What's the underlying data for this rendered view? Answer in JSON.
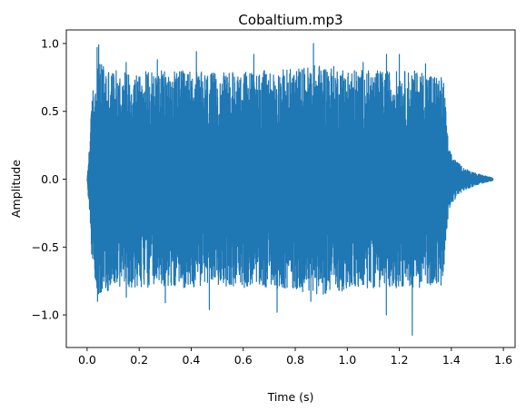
{
  "chart_data": {
    "type": "line",
    "title": "Cobaltium.mp3",
    "xlabel": "Time (s)",
    "ylabel": "Amplitude",
    "xlim": [
      -0.08,
      1.645
    ],
    "ylim": [
      -1.24,
      1.1
    ],
    "x_ticks": [
      0.0,
      0.2,
      0.4,
      0.6,
      0.8,
      1.0,
      1.2,
      1.4,
      1.6
    ],
    "x_tick_labels": [
      "0.0",
      "0.2",
      "0.4",
      "0.6",
      "0.8",
      "1.0",
      "1.2",
      "1.4",
      "1.6"
    ],
    "y_ticks": [
      -1.0,
      -0.5,
      0.0,
      0.5,
      1.0
    ],
    "y_tick_labels": [
      "−1.0",
      "−0.5",
      "0.0",
      "0.5",
      "1.0"
    ],
    "grid": false,
    "legend": "none",
    "series": [
      {
        "color": "#1f77b4",
        "duration_s": 1.56,
        "envelope": {
          "t": [
            0.0,
            0.01,
            0.02,
            0.04,
            0.06,
            0.1,
            0.2,
            0.3,
            0.4,
            0.5,
            0.6,
            0.7,
            0.8,
            0.9,
            1.0,
            1.1,
            1.2,
            1.3,
            1.37,
            1.39,
            1.42,
            1.45,
            1.5,
            1.56
          ],
          "amp": [
            0.0,
            0.3,
            0.65,
            0.85,
            0.85,
            0.8,
            0.8,
            0.8,
            0.8,
            0.78,
            0.8,
            0.8,
            0.82,
            0.85,
            0.82,
            0.8,
            0.8,
            0.8,
            0.75,
            0.22,
            0.13,
            0.08,
            0.04,
            0.01
          ]
        },
        "peaks_max": [
          {
            "t": 0.038,
            "y": 0.97
          },
          {
            "t": 0.044,
            "y": 0.99
          },
          {
            "t": 0.062,
            "y": 0.83
          },
          {
            "t": 0.15,
            "y": 0.86
          },
          {
            "t": 0.27,
            "y": 0.88
          },
          {
            "t": 0.42,
            "y": 0.94
          },
          {
            "t": 0.64,
            "y": 0.92
          },
          {
            "t": 0.87,
            "y": 1.0
          },
          {
            "t": 1.06,
            "y": 0.86
          },
          {
            "t": 1.15,
            "y": 0.92
          },
          {
            "t": 1.2,
            "y": 0.92
          },
          {
            "t": 1.3,
            "y": 0.85
          }
        ],
        "peaks_min": [
          {
            "t": 0.04,
            "y": -0.9
          },
          {
            "t": 0.15,
            "y": -0.87
          },
          {
            "t": 0.3,
            "y": -0.91
          },
          {
            "t": 0.47,
            "y": -0.96
          },
          {
            "t": 0.73,
            "y": -0.98
          },
          {
            "t": 0.86,
            "y": -0.9
          },
          {
            "t": 1.15,
            "y": -1.0
          },
          {
            "t": 1.25,
            "y": -1.15
          },
          {
            "t": 1.36,
            "y": -0.78
          }
        ]
      }
    ]
  }
}
